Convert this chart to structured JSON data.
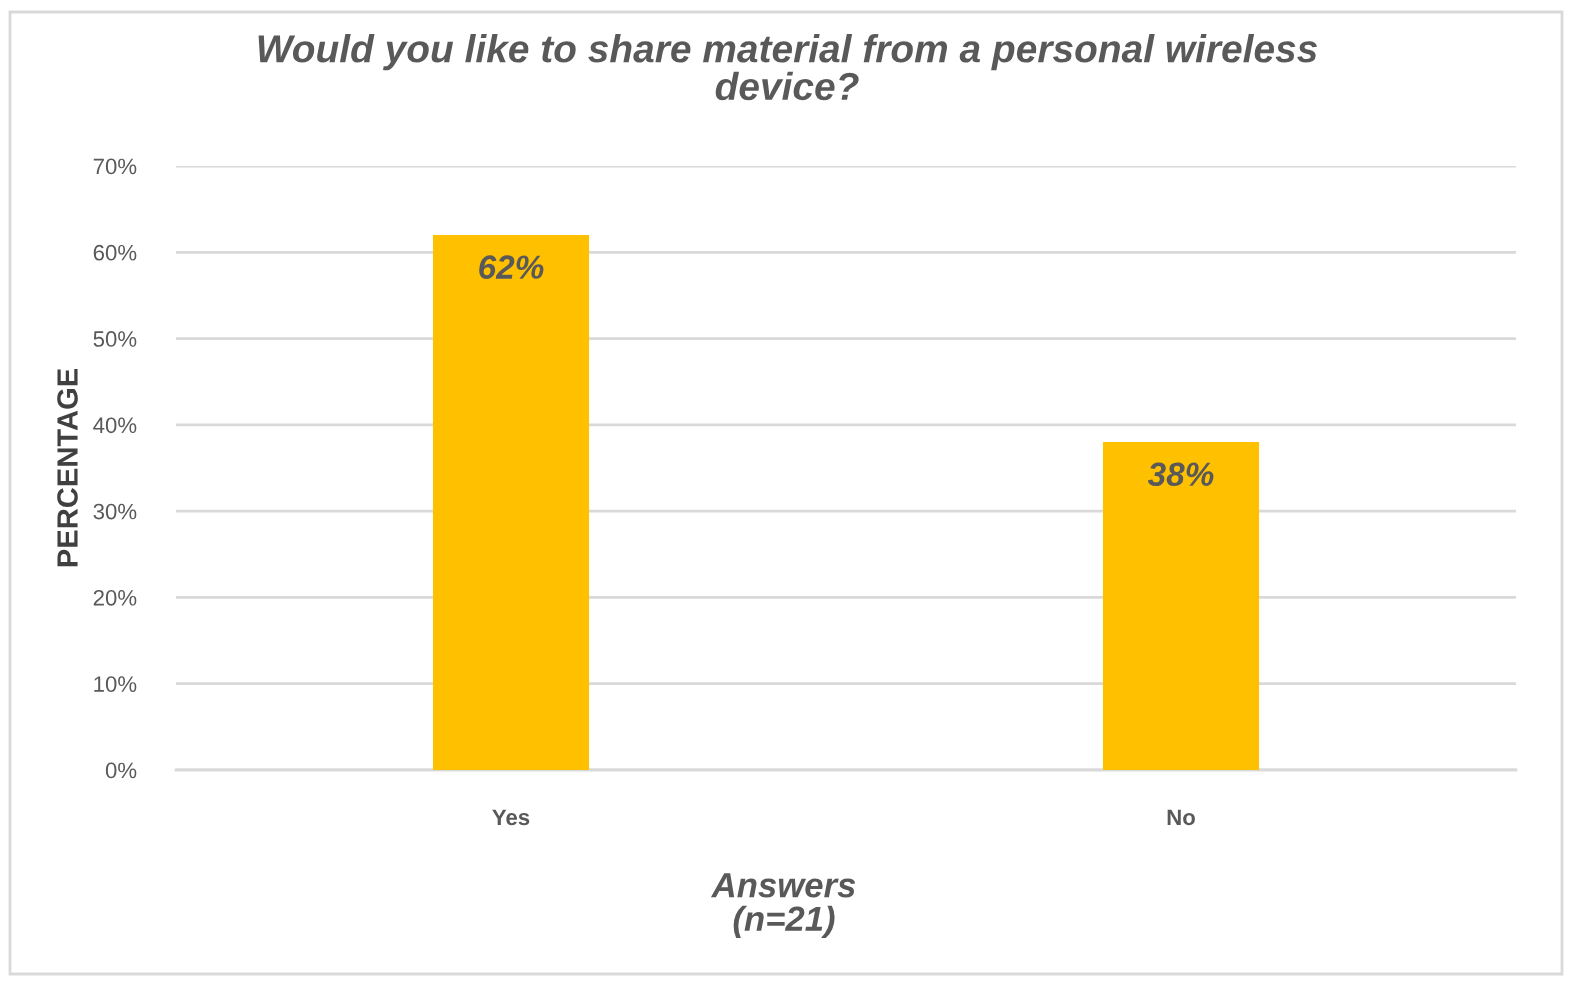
{
  "chart_data": {
    "type": "bar",
    "title": "Would you like to share material from a personal wireless device?",
    "xlabel": "Answers (n=21)",
    "ylabel": "PERCENTAGE",
    "categories": [
      "Yes",
      "No"
    ],
    "values": [
      62,
      38
    ],
    "color": "#ffc000",
    "value_labels": [
      "62%",
      "38%"
    ],
    "ylim": [
      0,
      70
    ],
    "yticks": [
      {
        "value": 0,
        "label": "0%"
      },
      {
        "value": 10,
        "label": "10%"
      },
      {
        "value": 20,
        "label": "20%"
      },
      {
        "value": 30,
        "label": "30%"
      },
      {
        "value": 40,
        "label": "40%"
      },
      {
        "value": 50,
        "label": "50%"
      },
      {
        "value": 60,
        "label": "60%"
      },
      {
        "value": 70,
        "label": "70%"
      }
    ],
    "grid": "y"
  }
}
